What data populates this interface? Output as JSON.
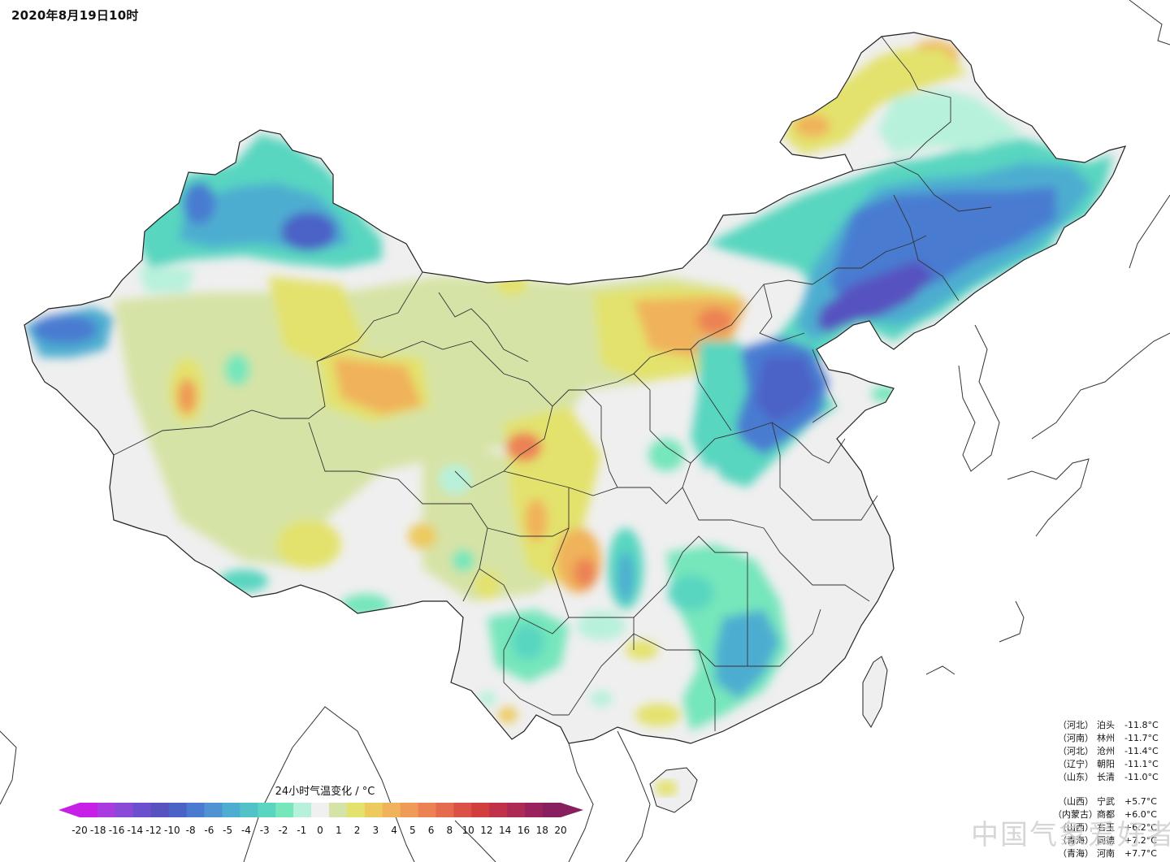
{
  "title": "2020年8月19日10时",
  "legend": {
    "title": "24小时气温变化 / °C",
    "ticks": [
      "-20",
      "-18",
      "-16",
      "-14",
      "-12",
      "-10",
      "-8",
      "-6",
      "-5",
      "-4",
      "-3",
      "-2",
      "-1",
      "0",
      "1",
      "2",
      "3",
      "4",
      "5",
      "6",
      "8",
      "10",
      "12",
      "14",
      "16",
      "18",
      "20"
    ],
    "colors": [
      "#c71ee8",
      "#a93be0",
      "#8b49d8",
      "#6a4fcf",
      "#5752c0",
      "#4b62c6",
      "#4a7bd1",
      "#4f93d3",
      "#4eadd0",
      "#52c2c9",
      "#58d6c0",
      "#76e6bb",
      "#b7f1db",
      "#f0f0f0",
      "#d6e3a6",
      "#e3e26d",
      "#ecca5e",
      "#f0b25a",
      "#ef9a57",
      "#ec8254",
      "#e56a4e",
      "#dc5146",
      "#d23d3e",
      "#c0314a",
      "#ad2a55",
      "#99225d",
      "#881f5f"
    ]
  },
  "stations": {
    "coldest": [
      {
        "province": "（河北）",
        "name": "泊头",
        "value": "-11.8°C"
      },
      {
        "province": "（河南）",
        "name": "林州",
        "value": "-11.7°C"
      },
      {
        "province": "（河北）",
        "name": "沧州",
        "value": "-11.4°C"
      },
      {
        "province": "（辽宁）",
        "name": "朝阳",
        "value": "-11.1°C"
      },
      {
        "province": "（山东）",
        "name": "长清",
        "value": "-11.0°C"
      }
    ],
    "warmest": [
      {
        "province": "（山西）",
        "name": "宁武",
        "value": "+5.7°C"
      },
      {
        "province": "（内蒙古）",
        "name": "商都",
        "value": "+6.0°C"
      },
      {
        "province": "（山西）",
        "name": "右玉",
        "value": "+6.2°C"
      },
      {
        "province": "（青海）",
        "name": "同德",
        "value": "+7.2°C"
      },
      {
        "province": "（青海）",
        "name": "河南",
        "value": "+7.7°C"
      }
    ]
  },
  "watermark": "中国气象爱好者",
  "colors": {
    "background": "#ffffff",
    "land_neutral": "#efefef",
    "border": "#333333"
  }
}
